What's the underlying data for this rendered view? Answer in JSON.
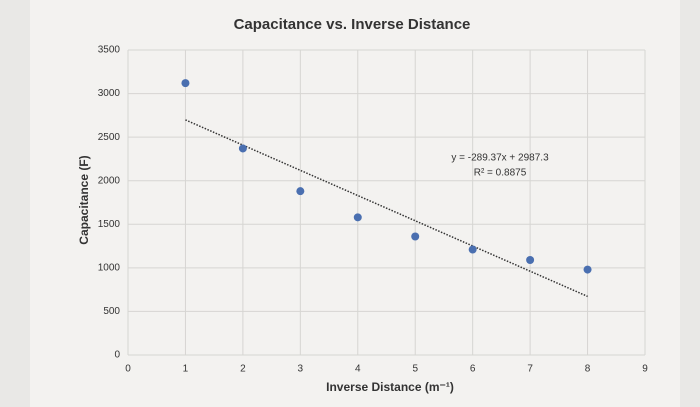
{
  "chart_data": {
    "type": "scatter",
    "title": "Capacitance vs. Inverse Distance",
    "x_label": "Inverse Distance (m⁻¹)",
    "y_label": "Capacitance (F)",
    "x": [
      1,
      2,
      3,
      4,
      5,
      6,
      7,
      8
    ],
    "values": [
      3120,
      2370,
      1880,
      1580,
      1360,
      1210,
      1090,
      980
    ],
    "color": "#4a6fb0",
    "xlim": [
      0,
      9
    ],
    "xticks": [
      0,
      1,
      2,
      3,
      4,
      5,
      6,
      7,
      8,
      9
    ],
    "ylim": [
      0,
      3500
    ],
    "yticks": [
      0,
      500,
      1000,
      1500,
      2000,
      2500,
      3000,
      3500
    ],
    "grid": true,
    "trendline": {
      "slope": -289.37,
      "intercept": 2987.3,
      "equation": "y = -289.37x + 2987.3",
      "r_squared": "R² = 0.8875"
    }
  }
}
